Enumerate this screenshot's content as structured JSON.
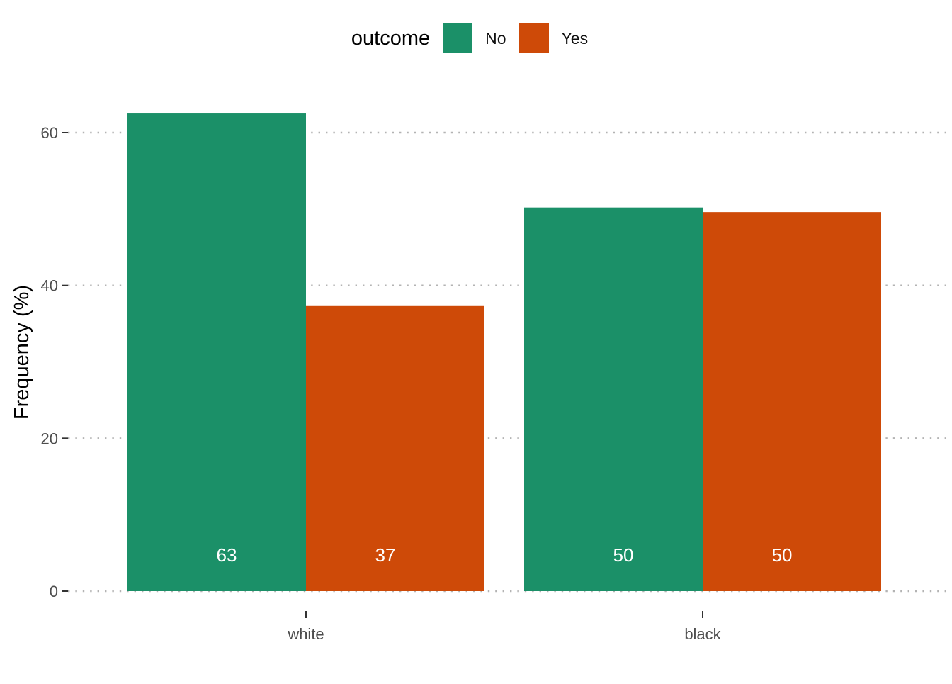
{
  "chart_data": {
    "type": "bar",
    "title": "",
    "xlabel": "",
    "ylabel": "Frequency (%)",
    "ylim": [
      0,
      65
    ],
    "yticks": [
      0,
      20,
      40,
      60
    ],
    "grid": "horizontal dotted",
    "legend": {
      "title": "outcome",
      "position": "top"
    },
    "categories": [
      "white",
      "black"
    ],
    "series": [
      {
        "name": "No",
        "color": "#1B9068",
        "values": [
          62.5,
          50.2
        ],
        "labels": [
          "63",
          "50"
        ]
      },
      {
        "name": "Yes",
        "color": "#CE4A08",
        "values": [
          37.3,
          49.6
        ],
        "labels": [
          "37",
          "50"
        ]
      }
    ]
  }
}
